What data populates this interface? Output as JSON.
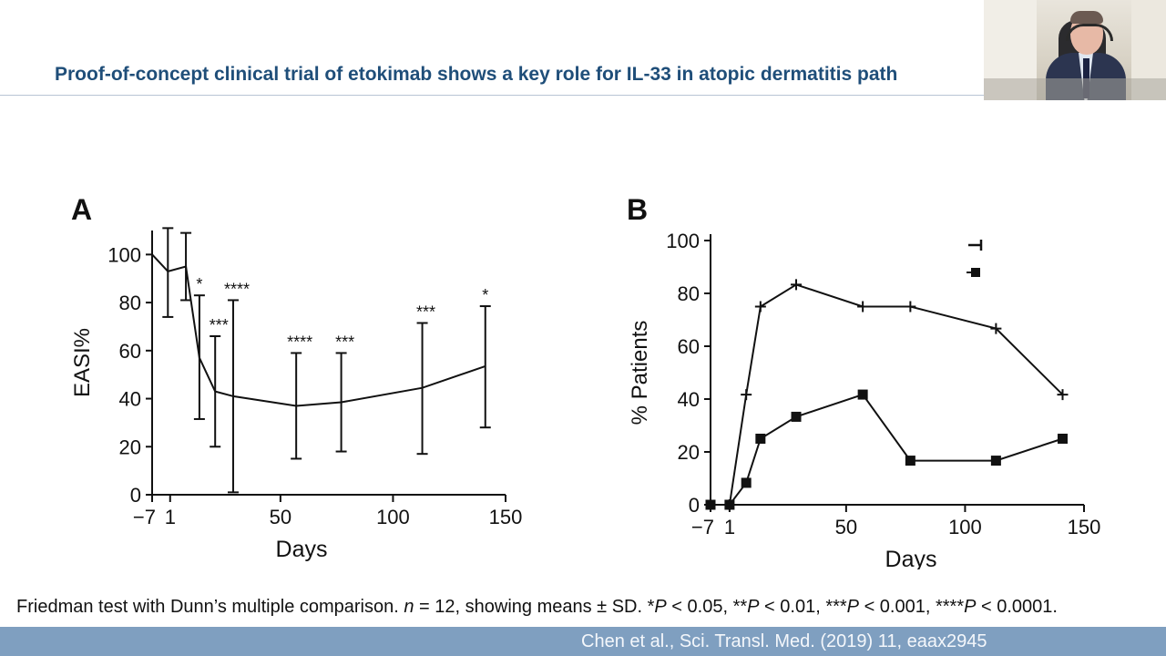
{
  "slide": {
    "title": "Proof-of-concept clinical trial of etokimab shows a key role for IL-33 in atopic dermatitis path",
    "footnote": {
      "p1": "Friedman test with Dunn’s multiple comparison. ",
      "n_label": "n",
      "p2": " = 12, showing means ± SD. *",
      "P1": "P",
      "p3": " < 0.05, **",
      "P2": "P",
      "p4": " < 0.01, ***",
      "P3": "P",
      "p5": " < 0.001, ****",
      "P4": "P",
      "p6": " < 0.0001."
    },
    "citation": "Chen et al., Sci. Transl. Med. (2019) 11, eaax2945",
    "colors": {
      "title": "#1f4e79",
      "bottom_bar": "#7f9fc0",
      "citation": "#f4f7fb"
    }
  },
  "chart_data": [
    {
      "panel_label": "A",
      "type": "line",
      "xlabel": "Days",
      "ylabel": "EASI%",
      "xticks": [
        -7,
        1,
        50,
        100,
        150
      ],
      "xtick_labels": [
        "−7",
        "1",
        "50",
        "100",
        "150"
      ],
      "yticks": [
        0,
        20,
        40,
        60,
        80,
        100
      ],
      "xlim": [
        -7,
        150
      ],
      "ylim": [
        0,
        110
      ],
      "series": [
        {
          "x": [
            -7,
            0,
            8,
            14,
            21,
            29,
            57,
            77,
            113,
            141
          ],
          "y": [
            100,
            93,
            95,
            57,
            43,
            41,
            37,
            38.5,
            44.5,
            53.5
          ],
          "error_upper": [
            100,
            111,
            109,
            83,
            66,
            81,
            59,
            59,
            71.5,
            78.5
          ],
          "error_lower": [
            100,
            74,
            81,
            31.5,
            20,
            1,
            15,
            18,
            17,
            28
          ],
          "significance": [
            "",
            "",
            "",
            "*",
            "***",
            "****",
            "****",
            "***",
            "***",
            "*"
          ]
        }
      ]
    },
    {
      "panel_label": "B",
      "type": "line",
      "xlabel": "Days",
      "ylabel": "% Patients",
      "xticks": [
        -7,
        1,
        50,
        100,
        150
      ],
      "xtick_labels": [
        "−7",
        "1",
        "50",
        "100",
        "150"
      ],
      "yticks": [
        0,
        20,
        40,
        60,
        80,
        100
      ],
      "xlim": [
        -7,
        150
      ],
      "ylim": [
        0,
        100
      ],
      "legend_position": "top-right",
      "series": [
        {
          "marker": "plus",
          "x": [
            -7,
            1,
            8,
            14,
            29,
            57,
            77,
            113,
            141
          ],
          "y": [
            0,
            0,
            41.7,
            75,
            83.3,
            75,
            75,
            66.7,
            41.7
          ]
        },
        {
          "marker": "square",
          "x": [
            -7,
            1,
            8,
            14,
            29,
            57,
            77,
            113,
            141
          ],
          "y": [
            0,
            0,
            8.3,
            25,
            33.3,
            41.7,
            16.7,
            16.7,
            25
          ]
        }
      ]
    }
  ]
}
